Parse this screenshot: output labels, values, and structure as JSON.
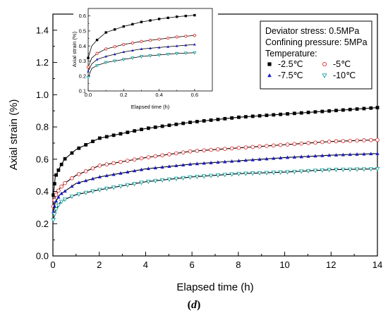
{
  "chart_data": [
    {
      "type": "scatter",
      "xlabel": "Elapsed time (h)",
      "ylabel": "Axial strain (%)",
      "xlim": [
        0,
        14
      ],
      "ylim": [
        0.0,
        1.5
      ],
      "xticks": [
        "0",
        "2",
        "4",
        "6",
        "8",
        "10",
        "12",
        "14"
      ],
      "yticks": [
        "0.0",
        "0.2",
        "0.4",
        "0.6",
        "0.8",
        "1.0",
        "1.2",
        "1.4"
      ],
      "grid": false,
      "fit_lines": true,
      "legend": {
        "placement": "top-right",
        "lines": [
          "Deviator stress: 0.5MPa",
          "Confining pressure: 5MPa",
          "Temperature:"
        ]
      },
      "series": [
        {
          "name": "-2.5℃",
          "marker": "square-filled",
          "color": "#000000",
          "curve_color": "#000000",
          "x": [
            0,
            0.1,
            0.3,
            0.5,
            1,
            2,
            4,
            6,
            8,
            10,
            12,
            14
          ],
          "y": [
            0.35,
            0.49,
            0.55,
            0.6,
            0.66,
            0.73,
            0.79,
            0.83,
            0.86,
            0.88,
            0.9,
            0.92
          ]
        },
        {
          "name": "-5℃",
          "marker": "circle-open",
          "color": "#e03030",
          "curve_color": "#000000",
          "x": [
            0,
            0.1,
            0.3,
            0.5,
            1,
            2,
            4,
            6,
            8,
            10,
            12,
            14
          ],
          "y": [
            0.29,
            0.37,
            0.42,
            0.45,
            0.5,
            0.56,
            0.61,
            0.65,
            0.67,
            0.69,
            0.71,
            0.72
          ]
        },
        {
          "name": "-7.5℃",
          "marker": "triangle-up-filled",
          "color": "#1a1acc",
          "curve_color": "#000000",
          "x": [
            0,
            0.1,
            0.3,
            0.5,
            1,
            2,
            4,
            6,
            8,
            10,
            12,
            14
          ],
          "y": [
            0.26,
            0.33,
            0.38,
            0.4,
            0.45,
            0.49,
            0.54,
            0.57,
            0.59,
            0.61,
            0.625,
            0.635
          ]
        },
        {
          "name": "-10℃",
          "marker": "triangle-down-open",
          "color": "#1aa3a3",
          "curve_color": "#000000",
          "x": [
            0,
            0.1,
            0.3,
            0.5,
            1,
            2,
            4,
            6,
            8,
            10,
            12,
            14
          ],
          "y": [
            0.21,
            0.28,
            0.33,
            0.35,
            0.38,
            0.41,
            0.46,
            0.49,
            0.51,
            0.52,
            0.535,
            0.54
          ]
        }
      ]
    },
    {
      "type": "scatter",
      "xlabel": "Elapsed time (h)",
      "ylabel": "Axial strain (%)",
      "xlim": [
        0.0,
        0.7
      ],
      "ylim": [
        0.1,
        0.65
      ],
      "xticks": [
        "0.0",
        "0.2",
        "0.4",
        "0.6"
      ],
      "yticks": [
        "0.1",
        "0.2",
        "0.3",
        "0.4",
        "0.5",
        "0.6"
      ],
      "grid": false,
      "series": [
        {
          "name": "-2.5℃",
          "marker": "square-filled",
          "color": "#000000",
          "x": [
            0,
            0.02,
            0.05,
            0.1,
            0.2,
            0.3,
            0.4,
            0.5,
            0.6
          ],
          "y": [
            0.32,
            0.4,
            0.44,
            0.49,
            0.53,
            0.56,
            0.58,
            0.595,
            0.605
          ]
        },
        {
          "name": "-5℃",
          "marker": "circle-open",
          "color": "#e03030",
          "x": [
            0,
            0.02,
            0.05,
            0.1,
            0.2,
            0.3,
            0.4,
            0.5,
            0.6
          ],
          "y": [
            0.26,
            0.32,
            0.35,
            0.38,
            0.41,
            0.43,
            0.445,
            0.46,
            0.47
          ]
        },
        {
          "name": "-7.5℃",
          "marker": "triangle-up-filled",
          "color": "#1a1acc",
          "x": [
            0,
            0.02,
            0.05,
            0.1,
            0.2,
            0.3,
            0.4,
            0.5,
            0.6
          ],
          "y": [
            0.23,
            0.28,
            0.31,
            0.33,
            0.36,
            0.38,
            0.39,
            0.4,
            0.41
          ]
        },
        {
          "name": "-10℃",
          "marker": "triangle-down-open",
          "color": "#1aa3a3",
          "x": [
            0,
            0.02,
            0.05,
            0.1,
            0.2,
            0.3,
            0.4,
            0.5,
            0.6
          ],
          "y": [
            0.19,
            0.25,
            0.27,
            0.29,
            0.31,
            0.33,
            0.34,
            0.35,
            0.355
          ]
        }
      ]
    }
  ],
  "caption": {
    "open": "(",
    "letter": "d",
    "close": ")"
  }
}
